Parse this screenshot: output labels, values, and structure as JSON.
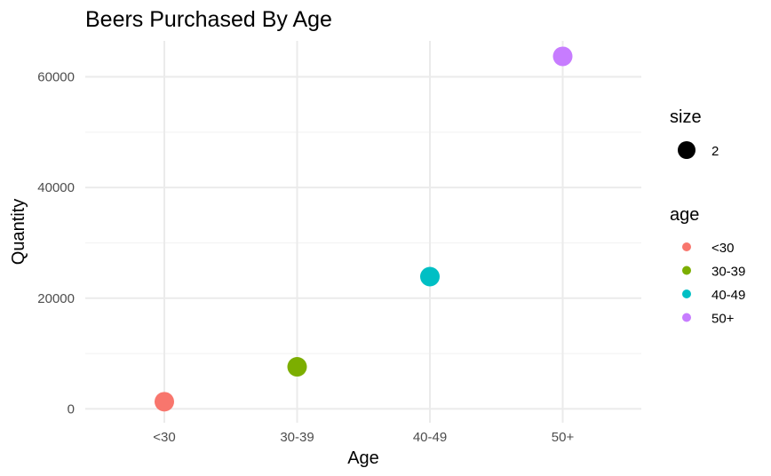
{
  "chart_data": {
    "type": "scatter",
    "title": "Beers Purchased By Age",
    "xlabel": "Age",
    "ylabel": "Quantity",
    "categories": [
      "<30",
      "30-39",
      "40-49",
      "50+"
    ],
    "values": [
      1300,
      7600,
      23900,
      63700
    ],
    "point_colors": [
      "#F8766D",
      "#7CAE00",
      "#00BFC4",
      "#C77CFF"
    ],
    "ylim": [
      -2500,
      66500
    ],
    "yticks": [
      0,
      20000,
      40000,
      60000
    ],
    "yticks_minor": [
      10000,
      30000,
      50000
    ],
    "grid": true,
    "legend_position": "right",
    "legends": {
      "size": {
        "title": "size",
        "entries": [
          {
            "label": "2",
            "color": "#000000"
          }
        ]
      },
      "age": {
        "title": "age",
        "entries": [
          {
            "label": "<30",
            "color": "#F8766D"
          },
          {
            "label": "30-39",
            "color": "#7CAE00"
          },
          {
            "label": "40-49",
            "color": "#00BFC4"
          },
          {
            "label": "50+",
            "color": "#C77CFF"
          }
        ]
      }
    }
  }
}
